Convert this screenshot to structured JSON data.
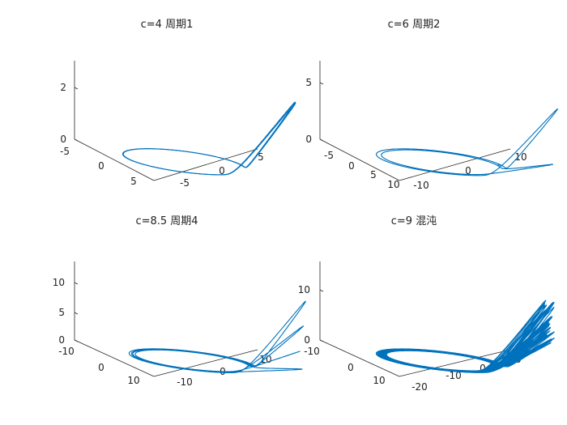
{
  "chart_data": [
    {
      "type": "line3d",
      "title": "c=4 周期1",
      "c": 4,
      "regime": "period-1",
      "xlim": [
        -5,
        5
      ],
      "ylim": [
        -5,
        5
      ],
      "zlim": [
        0,
        3
      ],
      "x_ticks": [
        "-5",
        "0",
        "5"
      ],
      "y_ticks": [
        "-5",
        "0",
        "5"
      ],
      "z_ticks": [
        "0",
        "2"
      ],
      "series": [
        {
          "color": "#0072BD"
        }
      ]
    },
    {
      "type": "line3d",
      "title": "c=6 周期2",
      "c": 6,
      "regime": "period-2",
      "xlim": [
        -5,
        10
      ],
      "ylim": [
        -10,
        10
      ],
      "zlim": [
        0,
        6
      ],
      "x_ticks": [
        "-5",
        "0",
        "5",
        "10"
      ],
      "y_ticks": [
        "-10",
        "0",
        "10"
      ],
      "z_ticks": [
        "0",
        "5"
      ],
      "series": [
        {
          "color": "#0072BD"
        }
      ]
    },
    {
      "type": "line3d",
      "title": "c=8.5 周期4",
      "c": 8.5,
      "regime": "period-4",
      "xlim": [
        -10,
        15
      ],
      "ylim": [
        -15,
        10
      ],
      "zlim": [
        0,
        13
      ],
      "x_ticks": [
        "-10",
        "0",
        "10"
      ],
      "y_ticks": [
        "-10",
        "0",
        "10"
      ],
      "z_ticks": [
        "0",
        "5",
        "10"
      ],
      "series": [
        {
          "color": "#0072BD"
        }
      ]
    },
    {
      "type": "line3d",
      "title": "c=9 混沌",
      "c": 9,
      "regime": "chaos",
      "xlim": [
        -10,
        15
      ],
      "ylim": [
        -20,
        10
      ],
      "zlim": [
        0,
        15
      ],
      "x_ticks": [
        "-10",
        "0",
        "10"
      ],
      "y_ticks": [
        "-20",
        "-10",
        "0",
        "10"
      ],
      "z_ticks": [
        "0",
        "10"
      ],
      "series": [
        {
          "color": "#0072BD"
        }
      ]
    }
  ]
}
